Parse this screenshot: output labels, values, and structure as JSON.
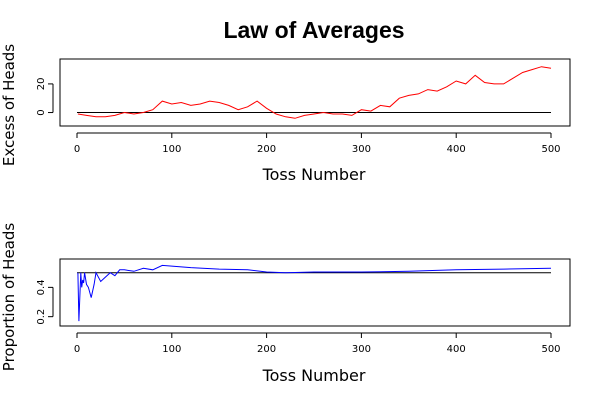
{
  "chart_title": "Law of Averages",
  "chart_data": [
    {
      "type": "line",
      "xlabel": "Toss Number",
      "ylabel": "Excess of Heads",
      "xlim": [
        0,
        500
      ],
      "ylim": [
        -8,
        36
      ],
      "xticks": [
        0,
        100,
        200,
        300,
        400,
        500
      ],
      "yticks": [
        0,
        20
      ],
      "reference_line": 0,
      "series": [
        {
          "color": "#ff0000",
          "x": [
            1,
            10,
            20,
            30,
            40,
            50,
            60,
            70,
            80,
            90,
            100,
            110,
            120,
            130,
            140,
            150,
            160,
            170,
            180,
            190,
            200,
            210,
            220,
            230,
            240,
            250,
            260,
            270,
            280,
            290,
            300,
            310,
            320,
            330,
            340,
            350,
            360,
            370,
            380,
            390,
            400,
            410,
            420,
            430,
            440,
            450,
            460,
            470,
            480,
            490,
            500
          ],
          "y": [
            -1,
            -2,
            -3,
            -3,
            -2,
            0,
            -1,
            0,
            2,
            8,
            6,
            7,
            5,
            6,
            8,
            7,
            5,
            2,
            4,
            8,
            3,
            -1,
            -3,
            -4,
            -2,
            -1,
            0,
            -1,
            -1,
            -2,
            2,
            1,
            5,
            4,
            10,
            12,
            13,
            16,
            15,
            18,
            22,
            20,
            26,
            21,
            20,
            20,
            24,
            28,
            30,
            32,
            31
          ]
        }
      ]
    },
    {
      "type": "line",
      "xlabel": "Toss Number",
      "ylabel": "Proportion of Heads",
      "xlim": [
        0,
        500
      ],
      "ylim": [
        0.15,
        0.58
      ],
      "xticks": [
        0,
        100,
        200,
        300,
        400,
        500
      ],
      "yticks": [
        0.2,
        0.4
      ],
      "reference_line": 0.5,
      "series": [
        {
          "color": "#0000ff",
          "x": [
            1,
            2,
            3,
            4,
            5,
            6,
            7,
            8,
            10,
            12,
            15,
            18,
            20,
            25,
            30,
            35,
            40,
            45,
            50,
            60,
            70,
            80,
            90,
            100,
            120,
            150,
            180,
            200,
            220,
            250,
            300,
            350,
            400,
            450,
            500
          ],
          "y": [
            0.5,
            0.17,
            0.33,
            0.5,
            0.4,
            0.45,
            0.43,
            0.5,
            0.42,
            0.4,
            0.33,
            0.42,
            0.5,
            0.44,
            0.47,
            0.5,
            0.48,
            0.52,
            0.52,
            0.51,
            0.53,
            0.52,
            0.55,
            0.545,
            0.535,
            0.525,
            0.52,
            0.505,
            0.5,
            0.505,
            0.505,
            0.51,
            0.52,
            0.525,
            0.53
          ]
        }
      ]
    }
  ]
}
